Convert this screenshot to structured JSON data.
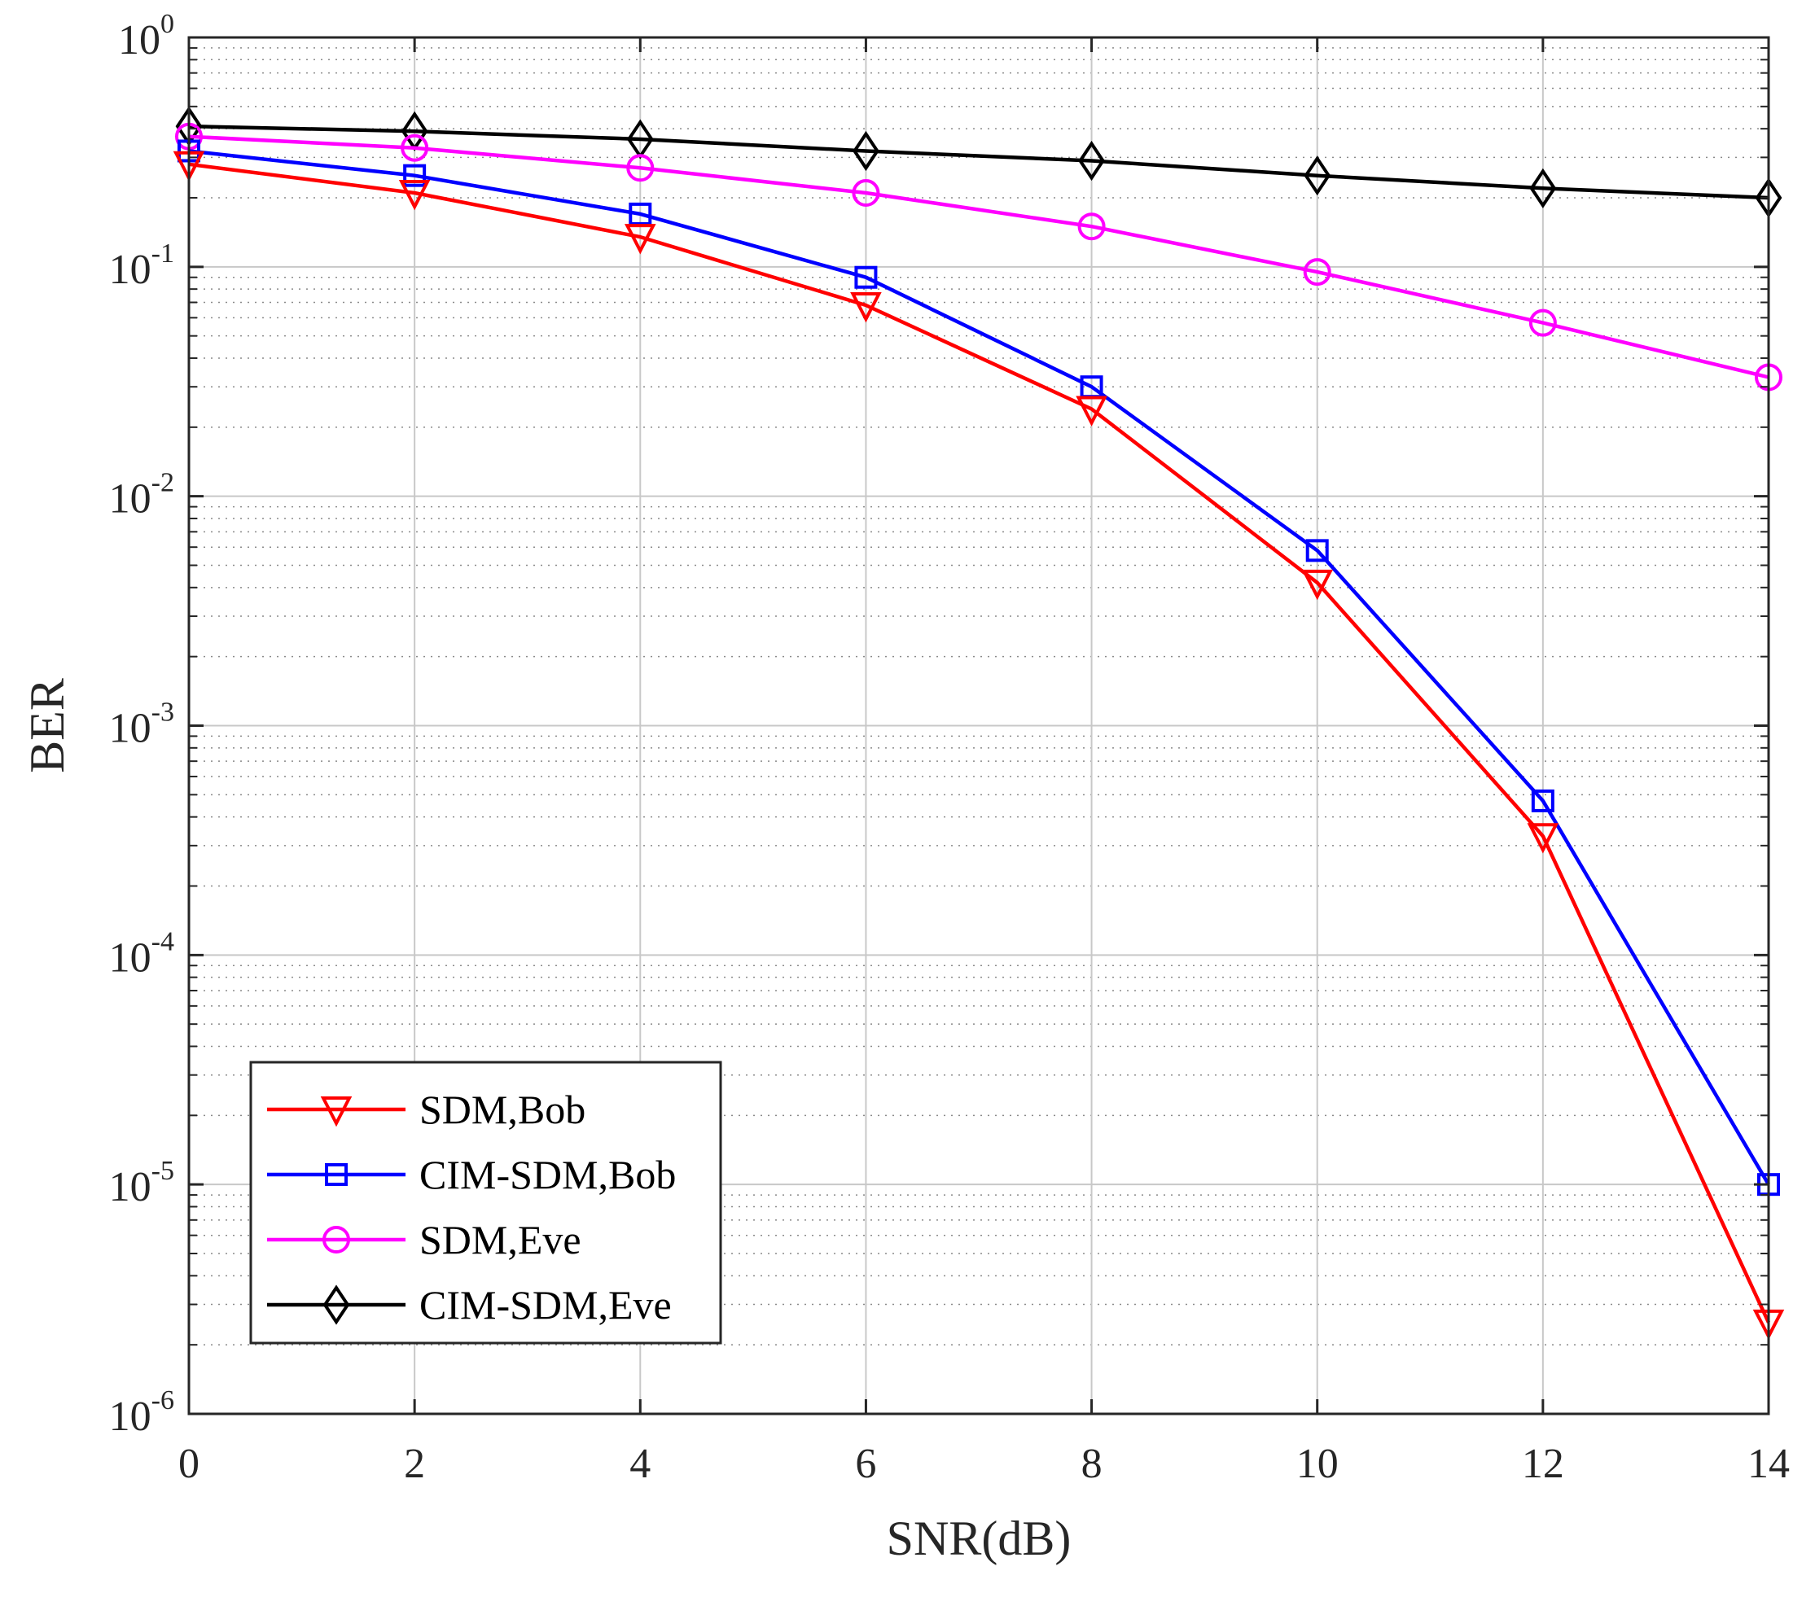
{
  "chart_data": {
    "type": "line",
    "xlabel": "SNR(dB)",
    "ylabel": "BER",
    "xlim": [
      0,
      14
    ],
    "ylim": [
      1e-06,
      1
    ],
    "yscale": "log",
    "grid": true,
    "minor_grid": true,
    "legend_position": "bottom-left",
    "x_ticks": [
      "0",
      "2",
      "4",
      "6",
      "8",
      "10",
      "12",
      "14"
    ],
    "y_ticks": [
      {
        "base": "10",
        "exp": "-6",
        "value": 1e-06
      },
      {
        "base": "10",
        "exp": "-5",
        "value": 1e-05
      },
      {
        "base": "10",
        "exp": "-4",
        "value": 0.0001
      },
      {
        "base": "10",
        "exp": "-3",
        "value": 0.001
      },
      {
        "base": "10",
        "exp": "-2",
        "value": 0.01
      },
      {
        "base": "10",
        "exp": "-1",
        "value": 0.1
      },
      {
        "base": "10",
        "exp": "0",
        "value": 1
      }
    ],
    "x": [
      0,
      2,
      4,
      6,
      8,
      10,
      12,
      14
    ],
    "series": [
      {
        "name": "SDM,Bob",
        "color": "#ff0000",
        "marker": "triangle-down",
        "values": [
          0.28,
          0.21,
          0.135,
          0.068,
          0.024,
          0.0042,
          0.00033,
          2.5e-06
        ]
      },
      {
        "name": "CIM-SDM,Bob",
        "color": "#0000ff",
        "marker": "square",
        "values": [
          0.32,
          0.25,
          0.17,
          0.09,
          0.03,
          0.0058,
          0.00047,
          1e-05
        ]
      },
      {
        "name": "SDM,Eve",
        "color": "#ff00ff",
        "marker": "circle",
        "values": [
          0.37,
          0.33,
          0.27,
          0.21,
          0.15,
          0.095,
          0.057,
          0.033
        ]
      },
      {
        "name": "CIM-SDM,Eve",
        "color": "#000000",
        "marker": "diamond",
        "values": [
          0.41,
          0.39,
          0.36,
          0.32,
          0.29,
          0.25,
          0.22,
          0.2
        ]
      }
    ]
  }
}
